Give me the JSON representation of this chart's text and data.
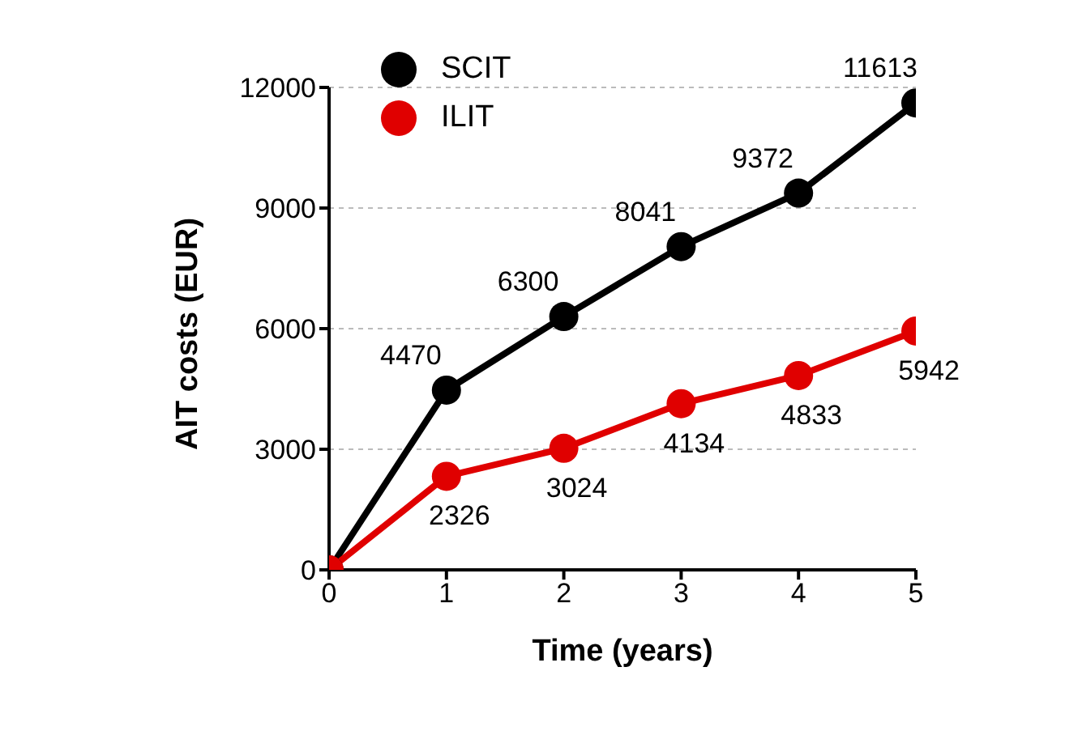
{
  "chart_data": {
    "type": "line",
    "xlabel": "Time (years)",
    "ylabel": "AIT costs (EUR)",
    "x": [
      0,
      1,
      2,
      3,
      4,
      5
    ],
    "series": [
      {
        "name": "SCIT",
        "color": "#000000",
        "values": [
          0,
          4470,
          6300,
          8041,
          9372,
          11613
        ],
        "value_labels": [
          null,
          "4470",
          "6300",
          "8041",
          "9372",
          "11613"
        ]
      },
      {
        "name": "ILIT",
        "color": "#e00000",
        "values": [
          0,
          2326,
          3024,
          4134,
          4833,
          5942
        ],
        "value_labels": [
          null,
          "2326",
          "3024",
          "4134",
          "4833",
          "5942"
        ]
      }
    ],
    "xlim": [
      0,
      5
    ],
    "xticks": [
      0,
      1,
      2,
      3,
      4,
      5
    ],
    "ylim": [
      0,
      12000
    ],
    "yticks": [
      0,
      3000,
      6000,
      9000,
      12000
    ],
    "grid": "y",
    "legend": "top left",
    "marker": "circle",
    "line_style": "solid"
  }
}
